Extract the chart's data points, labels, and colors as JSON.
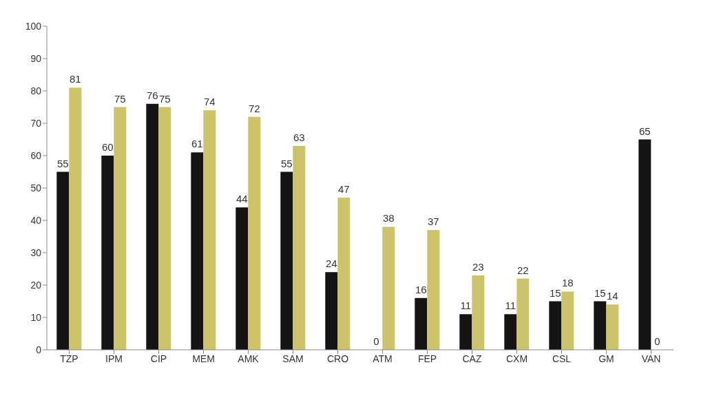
{
  "chart_data": {
    "type": "bar",
    "categories": [
      "TZP",
      "IPM",
      "CIP",
      "MEM",
      "AMK",
      "SAM",
      "CRO",
      "ATM",
      "FEP",
      "CAZ",
      "CXM",
      "CSL",
      "GM",
      "VAN"
    ],
    "series": [
      {
        "color": "#141414",
        "values": [
          55,
          60,
          76,
          61,
          44,
          55,
          24,
          0,
          16,
          11,
          11,
          15,
          15,
          65
        ]
      },
      {
        "color": "#cdc36a",
        "values": [
          81,
          75,
          75,
          74,
          72,
          63,
          47,
          38,
          37,
          23,
          22,
          18,
          14,
          0
        ]
      }
    ],
    "ylim": [
      0,
      100
    ],
    "yticks": [
      0,
      10,
      20,
      30,
      40,
      50,
      60,
      70,
      80,
      90,
      100
    ],
    "grid": false,
    "data_labels": true
  }
}
